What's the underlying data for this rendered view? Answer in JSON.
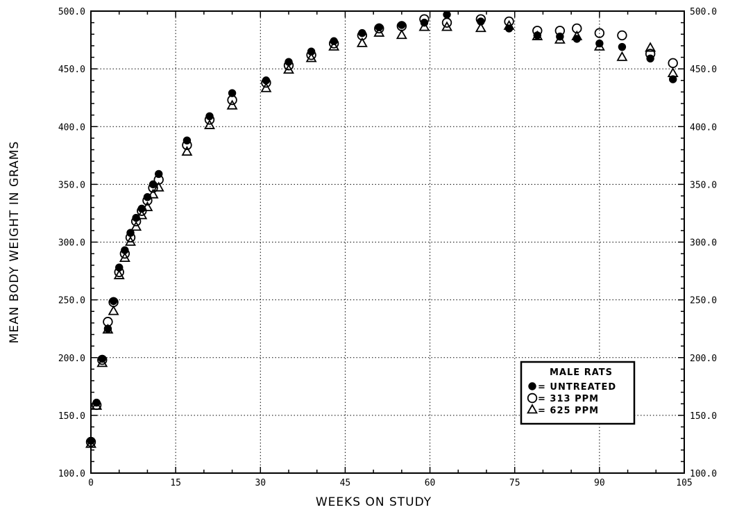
{
  "chart_data": {
    "type": "scatter",
    "xlabel": "WEEKS ON STUDY",
    "ylabel": "MEAN BODY WEIGHT IN GRAMS",
    "xlim": [
      0,
      105
    ],
    "ylim": [
      100,
      500
    ],
    "xticks": [
      0,
      15,
      30,
      45,
      60,
      75,
      90,
      105
    ],
    "yticks": [
      100,
      150,
      200,
      250,
      300,
      350,
      400,
      450,
      500
    ],
    "x_tick_labels": [
      "0",
      "15",
      "30",
      "45",
      "60",
      "75",
      "90",
      "105"
    ],
    "y_tick_labels": [
      "100.0",
      "150.0",
      "200.0",
      "250.0",
      "300.0",
      "350.0",
      "400.0",
      "450.0",
      "500.0"
    ],
    "grid": true,
    "legend": {
      "title": "MALE RATS",
      "placement": "bottom-right"
    },
    "series": [
      {
        "name": "UNTREATED",
        "label": "= UNTREATED",
        "marker": "filled-circle",
        "points": [
          [
            0,
            128
          ],
          [
            1,
            161
          ],
          [
            2,
            199
          ],
          [
            3,
            225
          ],
          [
            4,
            249
          ],
          [
            5,
            278
          ],
          [
            6,
            293
          ],
          [
            7,
            308
          ],
          [
            8,
            321
          ],
          [
            9,
            329
          ],
          [
            10,
            339
          ],
          [
            11,
            350
          ],
          [
            12,
            359
          ],
          [
            17,
            388
          ],
          [
            21,
            409
          ],
          [
            25,
            429
          ],
          [
            31,
            440
          ],
          [
            35,
            456
          ],
          [
            39,
            465
          ],
          [
            43,
            474
          ],
          [
            48,
            481
          ],
          [
            51,
            486
          ],
          [
            55,
            488
          ],
          [
            59,
            490
          ],
          [
            63,
            497
          ],
          [
            69,
            491
          ],
          [
            74,
            485
          ],
          [
            79,
            479
          ],
          [
            83,
            478
          ],
          [
            86,
            476
          ],
          [
            90,
            472
          ],
          [
            94,
            469
          ],
          [
            99,
            459
          ],
          [
            103,
            441
          ]
        ]
      },
      {
        "name": "313 PPM",
        "label": "= 313 PPM",
        "marker": "open-circle",
        "points": [
          [
            0,
            127
          ],
          [
            1,
            159
          ],
          [
            2,
            198
          ],
          [
            3,
            231
          ],
          [
            4,
            248
          ],
          [
            5,
            274
          ],
          [
            6,
            290
          ],
          [
            7,
            304
          ],
          [
            8,
            318
          ],
          [
            9,
            327
          ],
          [
            10,
            336
          ],
          [
            11,
            347
          ],
          [
            12,
            354
          ],
          [
            17,
            384
          ],
          [
            21,
            406
          ],
          [
            25,
            423
          ],
          [
            31,
            438
          ],
          [
            35,
            453
          ],
          [
            39,
            462
          ],
          [
            43,
            472
          ],
          [
            48,
            479
          ],
          [
            51,
            485
          ],
          [
            55,
            487
          ],
          [
            59,
            493
          ],
          [
            63,
            490
          ],
          [
            69,
            493
          ],
          [
            74,
            491
          ],
          [
            79,
            483
          ],
          [
            83,
            483
          ],
          [
            86,
            485
          ],
          [
            90,
            481
          ],
          [
            94,
            479
          ],
          [
            99,
            463
          ],
          [
            103,
            455
          ]
        ]
      },
      {
        "name": "625 PPM",
        "label": "= 625 PPM",
        "marker": "open-triangle",
        "points": [
          [
            0,
            125
          ],
          [
            1,
            158
          ],
          [
            2,
            195
          ],
          [
            3,
            224
          ],
          [
            4,
            240
          ],
          [
            5,
            271
          ],
          [
            6,
            286
          ],
          [
            7,
            300
          ],
          [
            8,
            313
          ],
          [
            9,
            323
          ],
          [
            10,
            330
          ],
          [
            11,
            341
          ],
          [
            12,
            347
          ],
          [
            17,
            378
          ],
          [
            21,
            401
          ],
          [
            25,
            418
          ],
          [
            31,
            433
          ],
          [
            35,
            449
          ],
          [
            39,
            459
          ],
          [
            43,
            469
          ],
          [
            48,
            472
          ],
          [
            51,
            481
          ],
          [
            55,
            479
          ],
          [
            59,
            486
          ],
          [
            63,
            486
          ],
          [
            69,
            485
          ],
          [
            74,
            487
          ],
          [
            79,
            478
          ],
          [
            83,
            475
          ],
          [
            86,
            478
          ],
          [
            90,
            469
          ],
          [
            94,
            460
          ],
          [
            99,
            468
          ],
          [
            103,
            446
          ]
        ]
      }
    ]
  }
}
